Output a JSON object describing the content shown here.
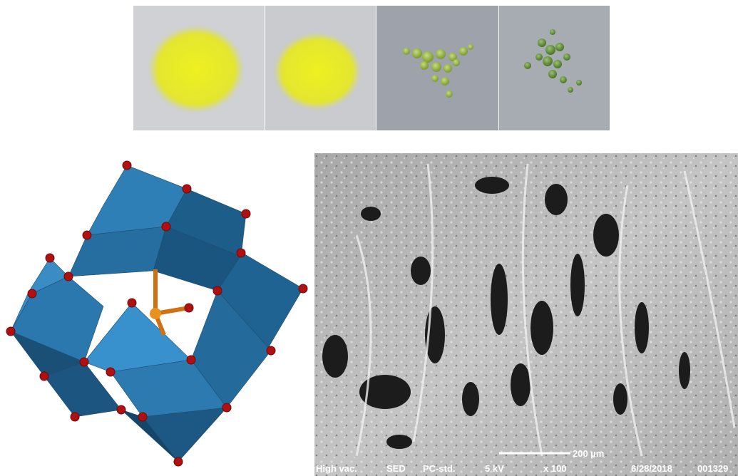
{
  "sem": {
    "scale_bar": "200 µm",
    "info": [
      "High vac.",
      "SED",
      "PC-std.",
      "5 kV",
      "x 100",
      "6/28/2018",
      "001329"
    ]
  }
}
